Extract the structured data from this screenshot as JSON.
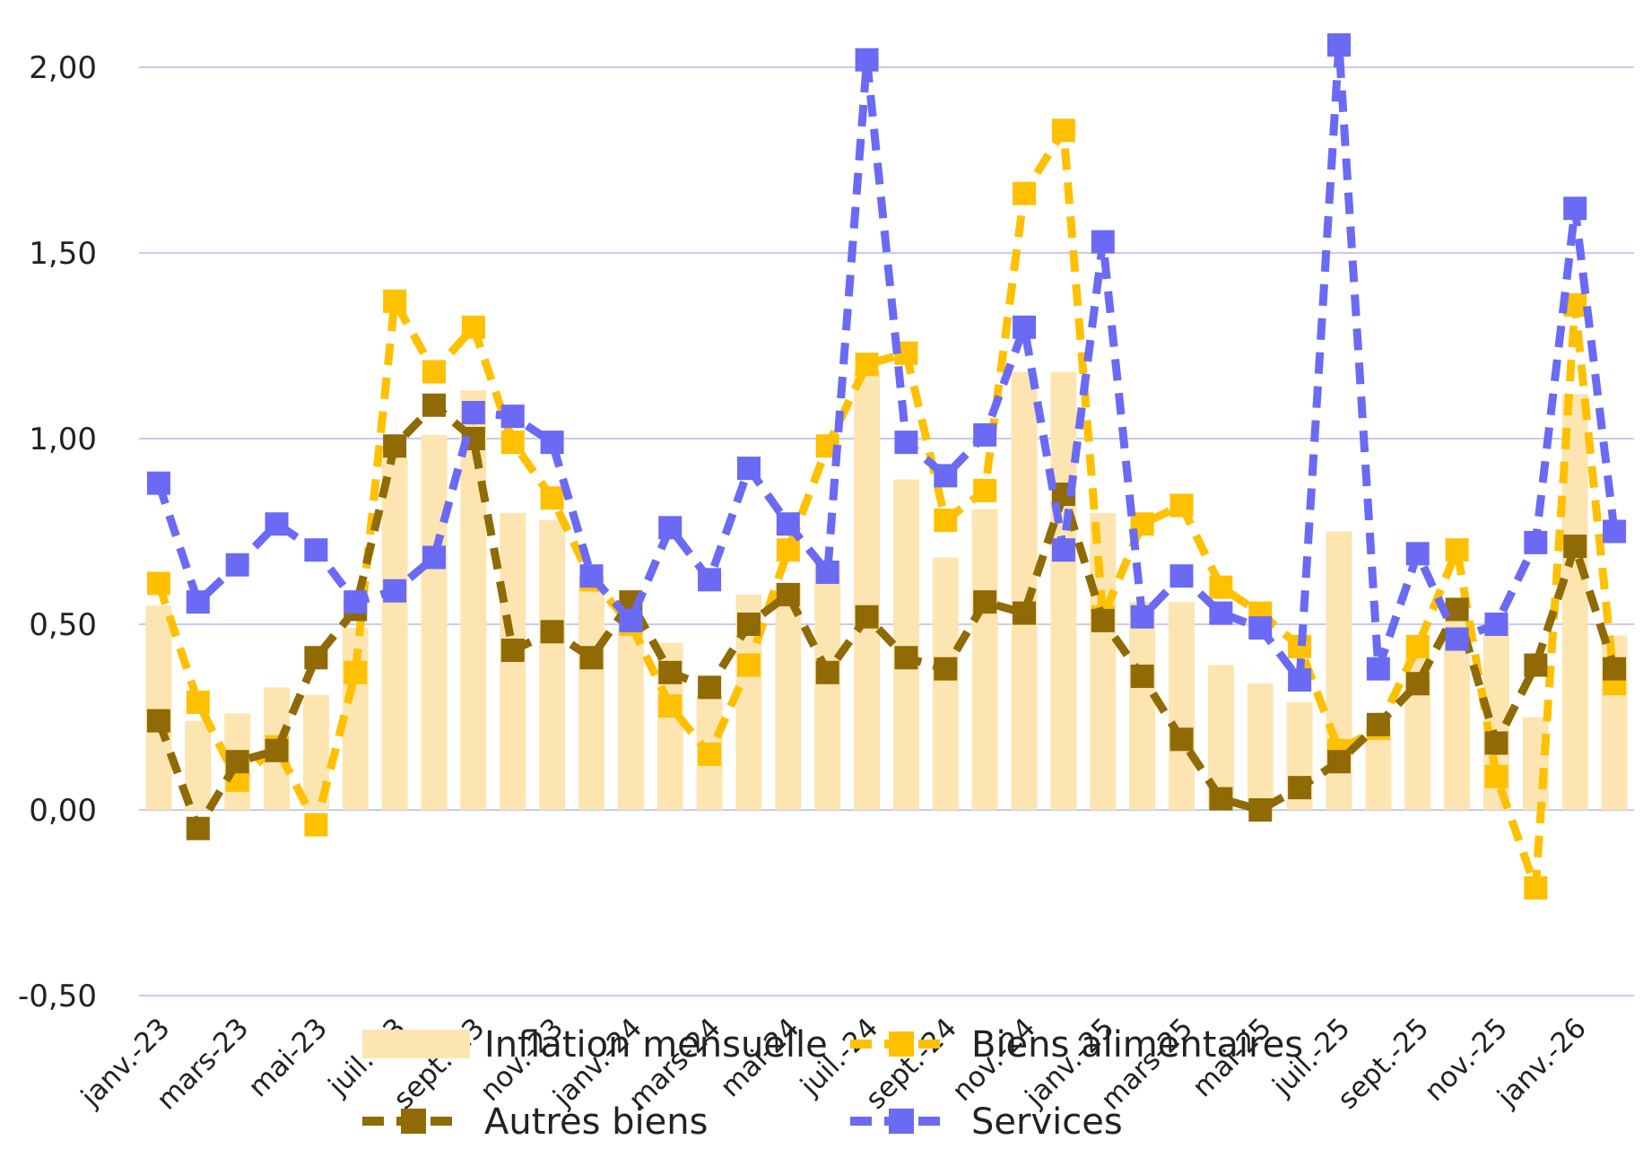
{
  "chart_data": {
    "type": "bar+line",
    "title": "",
    "xlabel": "",
    "ylabel": "",
    "ylim": [
      -0.5,
      2.0
    ],
    "yticks": [
      "2,00",
      "1,50",
      "1,00",
      "0,50",
      "0,00",
      "-0,50"
    ],
    "ytick_values": [
      2.0,
      1.5,
      1.0,
      0.5,
      0.0,
      -0.5
    ],
    "grid": true,
    "legend_position": "bottom",
    "x_tick_labels": [
      "janv.-23",
      "mars-23",
      "mai-23",
      "juil.-23",
      "sept.-23",
      "nov.-23",
      "janv.-24",
      "mars-24",
      "mai-24",
      "juil.-24",
      "sept.-24",
      "nov.-24",
      "janv.-25",
      "mars-25",
      "mai-25",
      "juil.-25",
      "sept.-25",
      "nov.-25",
      "janv.-26"
    ],
    "tick_every": 2,
    "series": [
      {
        "name": "Inflation mensuelle",
        "kind": "bar",
        "color": "#FCE5B0",
        "values": [
          0.55,
          0.24,
          0.26,
          0.33,
          0.31,
          0.49,
          0.95,
          1.01,
          1.13,
          0.8,
          0.78,
          0.63,
          0.5,
          0.45,
          0.31,
          0.58,
          0.61,
          0.67,
          1.18,
          0.89,
          0.68,
          0.81,
          1.18,
          1.18,
          0.8,
          0.56,
          0.56,
          0.39,
          0.34,
          0.29,
          0.75,
          0.22,
          0.41,
          0.51,
          0.51,
          0.25,
          1.12,
          0.47
        ]
      },
      {
        "name": "Biens alimentaires",
        "kind": "line",
        "color": "#FFC000",
        "values": [
          0.61,
          0.29,
          0.08,
          0.17,
          -0.04,
          0.37,
          1.37,
          1.18,
          1.3,
          0.99,
          0.84,
          0.62,
          0.5,
          0.28,
          0.15,
          0.39,
          0.7,
          0.98,
          1.2,
          1.23,
          0.78,
          0.86,
          1.66,
          1.83,
          0.52,
          0.77,
          0.82,
          0.6,
          0.53,
          0.44,
          0.16,
          0.22,
          0.44,
          0.7,
          0.09,
          -0.21,
          1.36,
          0.34
        ]
      },
      {
        "name": "Autres biens",
        "kind": "line",
        "color": "#8F6A05",
        "values": [
          0.24,
          -0.05,
          0.13,
          0.16,
          0.41,
          0.54,
          0.98,
          1.09,
          1.0,
          0.43,
          0.48,
          0.41,
          0.56,
          0.37,
          0.33,
          0.5,
          0.58,
          0.37,
          0.52,
          0.41,
          0.38,
          0.56,
          0.53,
          0.85,
          0.51,
          0.36,
          0.19,
          0.03,
          0.0,
          0.06,
          0.13,
          0.23,
          0.34,
          0.54,
          0.18,
          0.39,
          0.71,
          0.38
        ]
      },
      {
        "name": "Services",
        "kind": "line",
        "color": "#6A6AF4",
        "values": [
          0.88,
          0.56,
          0.66,
          0.77,
          0.7,
          0.56,
          0.59,
          0.68,
          1.07,
          1.06,
          0.99,
          0.63,
          0.51,
          0.76,
          0.62,
          0.92,
          0.77,
          0.64,
          2.02,
          0.99,
          0.9,
          1.01,
          1.3,
          0.7,
          1.53,
          0.52,
          0.63,
          0.53,
          0.49,
          0.35,
          2.06,
          0.38,
          0.69,
          0.46,
          0.5,
          0.72,
          1.62,
          0.75
        ]
      }
    ]
  }
}
